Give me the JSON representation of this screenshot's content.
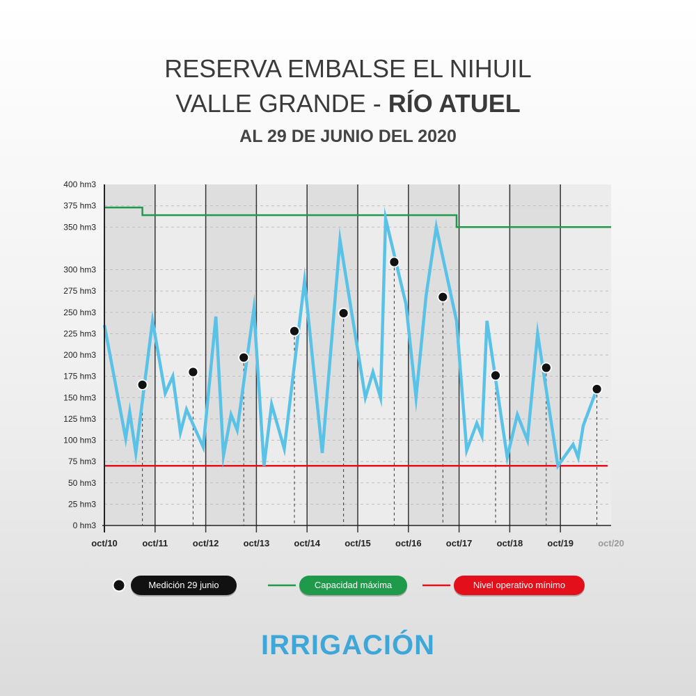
{
  "header": {
    "line1": "RESERVA EMBALSE EL NIHUIL",
    "line2_prefix": "VALLE GRANDE - ",
    "line2_bold": "RÍO ATUEL",
    "subtitle": "AL 29 DE JUNIO DEL 2020"
  },
  "colors": {
    "series": "#5bc2e7",
    "capacity": "#1e9a4a",
    "minimum": "#e3101c",
    "marker": "#111111",
    "band_dark": "#dedede",
    "band_light": "#ececec"
  },
  "chart_data": {
    "type": "line",
    "ylim": [
      0,
      400
    ],
    "xlim": [
      10,
      20
    ],
    "y_ticks": [
      {
        "v": 400,
        "label": "400 hm3"
      },
      {
        "v": 375,
        "label": "375 hm3"
      },
      {
        "v": 350,
        "label": "350 hm3"
      },
      {
        "v": 300,
        "label": "300 hm3"
      },
      {
        "v": 275,
        "label": "275 hm3"
      },
      {
        "v": 250,
        "label": "250 hm3"
      },
      {
        "v": 225,
        "label": "225 hm3"
      },
      {
        "v": 200,
        "label": "200 hm3"
      },
      {
        "v": 175,
        "label": "175 hm3"
      },
      {
        "v": 150,
        "label": "150 hm3"
      },
      {
        "v": 125,
        "label": "125 hm3"
      },
      {
        "v": 100,
        "label": "100 hm3"
      },
      {
        "v": 75,
        "label": "75 hm3"
      },
      {
        "v": 50,
        "label": "50 hm3"
      },
      {
        "v": 25,
        "label": "25 hm3"
      },
      {
        "v": 0,
        "label": "0 hm3"
      }
    ],
    "x_ticks": [
      {
        "v": 10,
        "label": "oct/10"
      },
      {
        "v": 11,
        "label": "oct/11"
      },
      {
        "v": 12,
        "label": "oct/12"
      },
      {
        "v": 13,
        "label": "oct/13"
      },
      {
        "v": 14,
        "label": "oct/14"
      },
      {
        "v": 15,
        "label": "oct/15"
      },
      {
        "v": 16,
        "label": "oct/16"
      },
      {
        "v": 17,
        "label": "oct/17"
      },
      {
        "v": 18,
        "label": "oct/18"
      },
      {
        "v": 19,
        "label": "oct/19"
      },
      {
        "v": 20,
        "label": "oct/20",
        "muted": true
      }
    ],
    "series": [
      {
        "kind": "stored_volume",
        "x": [
          10.0,
          10.42,
          10.5,
          10.62,
          10.95,
          11.2,
          11.35,
          11.5,
          11.62,
          11.95,
          12.2,
          12.35,
          12.5,
          12.62,
          12.95,
          13.15,
          13.3,
          13.55,
          13.95,
          14.3,
          14.65,
          15.15,
          15.3,
          15.45,
          15.55,
          15.95,
          16.15,
          16.35,
          16.55,
          16.95,
          17.15,
          17.35,
          17.45,
          17.55,
          17.95,
          18.15,
          18.35,
          18.55,
          18.95,
          19.25,
          19.35,
          19.45,
          19.75
        ],
        "y": [
          235,
          102,
          133,
          85,
          240,
          155,
          175,
          109,
          136,
          92,
          245,
          82,
          130,
          112,
          254,
          70,
          142,
          90,
          287,
          85,
          335,
          150,
          180,
          150,
          360,
          260,
          150,
          270,
          350,
          240,
          88,
          120,
          105,
          240,
          80,
          130,
          100,
          225,
          70,
          95,
          80,
          117,
          165
        ]
      }
    ],
    "markers": {
      "name": "Medición 29 junio",
      "x": [
        10.75,
        11.75,
        12.75,
        13.75,
        14.72,
        15.72,
        16.68,
        17.72,
        18.72,
        19.72
      ],
      "y": [
        165,
        180,
        197,
        228,
        249,
        309,
        268,
        176,
        185,
        160
      ]
    },
    "capacity_line": {
      "name": "Capacidad máxima",
      "steps": [
        [
          10.0,
          373
        ],
        [
          10.75,
          373
        ],
        [
          10.75,
          364
        ],
        [
          16.95,
          364
        ],
        [
          16.95,
          350
        ],
        [
          20.0,
          350
        ]
      ]
    },
    "minimum_line": {
      "name": "Nivel operativo mínimo",
      "value": 70
    }
  },
  "legend": {
    "marker_label": "Medición 29 junio",
    "capacity_label": "Capacidad máxima",
    "minimum_label": "Nivel operativo mínimo"
  },
  "logo": {
    "text": "IRRIGACIÓN"
  }
}
